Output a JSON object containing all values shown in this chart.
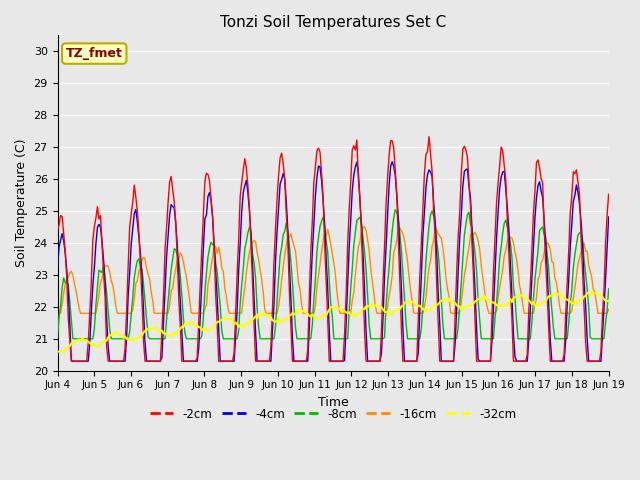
{
  "title": "Tonzi Soil Temperatures Set C",
  "xlabel": "Time",
  "ylabel": "Soil Temperature (C)",
  "ylim": [
    20.0,
    30.5
  ],
  "yticks": [
    20.0,
    21.0,
    22.0,
    23.0,
    24.0,
    25.0,
    26.0,
    27.0,
    28.0,
    29.0,
    30.0
  ],
  "colors": [
    "#FF0000",
    "#0000EE",
    "#00BB00",
    "#FF8C00",
    "#FFFF00"
  ],
  "labels": [
    "-2cm",
    "-4cm",
    "-8cm",
    "-16cm",
    "-32cm"
  ],
  "legend_text": "TZ_fmet",
  "legend_facecolor": "#FFFFC0",
  "legend_edgecolor": "#BBAA00",
  "bg_color": "#E8E8E8",
  "grid_color": "#FFFFFF",
  "title_fontsize": 11,
  "axis_label_fontsize": 9,
  "tick_fontsize": 8,
  "start_day": 4,
  "n_days": 15
}
